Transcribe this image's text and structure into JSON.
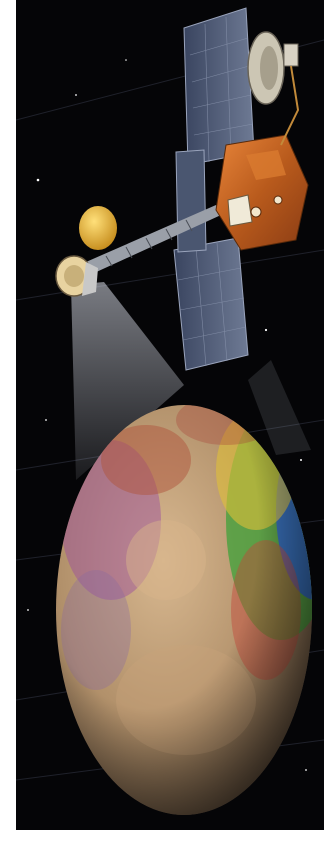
{
  "scene": {
    "subject": "spacecraft-orbiting-planet",
    "colors": {
      "space": "#050507",
      "frame": "#ffffff",
      "solar_panel": "#4a5670",
      "gold_foil": "#c9661f",
      "antenna_gold": "#e2b533",
      "planet_tan": "#b89a74",
      "planet_red": "#b0553d",
      "planet_blue": "#2f5fc0",
      "planet_green": "#55b23c",
      "planet_magenta": "#9a4a9f"
    },
    "icons": [
      "solar-panel-icon",
      "spacecraft-body-icon",
      "dish-antenna-icon",
      "instrument-boom-icon",
      "planet-icon"
    ]
  }
}
